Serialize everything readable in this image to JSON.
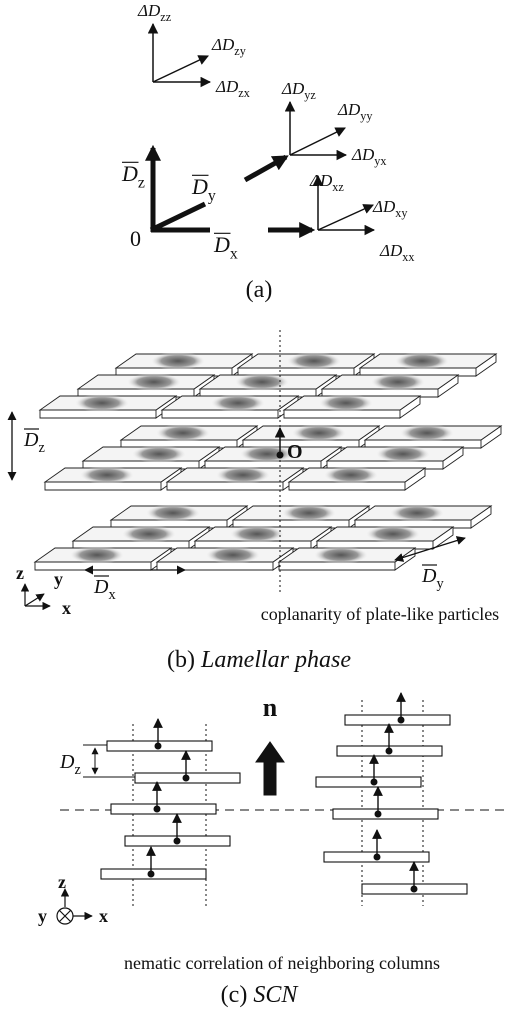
{
  "panel_a": {
    "vectors": [
      {
        "main": "ΔD",
        "sub": "zz"
      },
      {
        "main": "ΔD",
        "sub": "zy"
      },
      {
        "main": "ΔD",
        "sub": "zx"
      },
      {
        "main": "ΔD",
        "sub": "yz"
      },
      {
        "main": "ΔD",
        "sub": "yy"
      },
      {
        "main": "ΔD",
        "sub": "yx"
      },
      {
        "main": "ΔD",
        "sub": "xz"
      },
      {
        "main": "ΔD",
        "sub": "xy"
      },
      {
        "main": "ΔD",
        "sub": "xx"
      }
    ],
    "means": [
      {
        "main": "D",
        "sub": "z"
      },
      {
        "main": "D",
        "sub": "y"
      },
      {
        "main": "D",
        "sub": "x"
      }
    ],
    "origin": "0",
    "caption": "(a)"
  },
  "panel_b": {
    "spacings": [
      {
        "main": "D",
        "sub": "z"
      },
      {
        "main": "D",
        "sub": "x"
      },
      {
        "main": "D",
        "sub": "y"
      }
    ],
    "origin": "O",
    "axes": [
      "z",
      "y",
      "x"
    ],
    "note": "coplanarity of plate-like particles",
    "caption": {
      "label": "(b)",
      "name": "Lamellar phase"
    }
  },
  "panel_c": {
    "spacing": {
      "main": "D",
      "sub": "z"
    },
    "director": "n",
    "axes": [
      "z",
      "y",
      "x"
    ],
    "note": "nematic correlation of neighboring columns",
    "caption": {
      "label": "(c)",
      "name": "SCN"
    }
  }
}
